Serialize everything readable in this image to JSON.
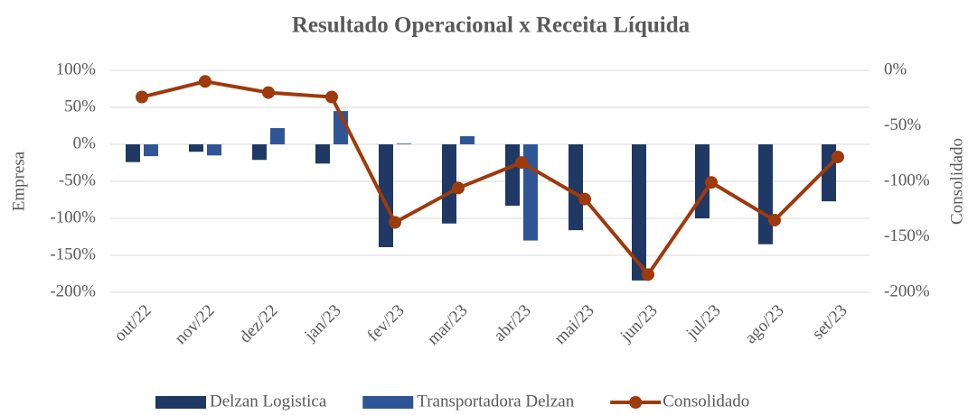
{
  "chart_data": {
    "type": "bar_line",
    "title": "Resultado Operacional x Receita Líquida",
    "ylabel": "Empresa",
    "y2label": "Consolidado",
    "categories": [
      "out/22",
      "nov/22",
      "dez/22",
      "jan/23",
      "fev/23",
      "mar/23",
      "abr/23",
      "mai/23",
      "jun/23",
      "jul/23",
      "ago/23",
      "set/23"
    ],
    "series": [
      {
        "name": "Delzan Logistica",
        "type": "bar",
        "color": "#1f3864",
        "values": [
          -24,
          -10,
          -21,
          -26,
          -139,
          -107,
          -83,
          -116,
          -184,
          -100,
          -135,
          -77
        ]
      },
      {
        "name": "Transportadora Delzan",
        "type": "bar",
        "color": "#2f5597",
        "values": [
          -16,
          -15,
          22,
          45,
          1,
          11,
          -130,
          null,
          null,
          null,
          null,
          null
        ]
      },
      {
        "name": "Consolidado",
        "type": "line",
        "axis": "y2",
        "color": "#9e3a0c",
        "values": [
          -24,
          -10,
          -20,
          -24,
          -137,
          -106,
          -83,
          -116,
          -184,
          -101,
          -135,
          -78
        ]
      }
    ],
    "ylim": [
      -200,
      100
    ],
    "yticks": [
      {
        "value": -200,
        "label": "-200%"
      },
      {
        "value": -150,
        "label": "-150%"
      },
      {
        "value": -100,
        "label": "-100%"
      },
      {
        "value": -50,
        "label": "-50%"
      },
      {
        "value": 0,
        "label": "0%"
      },
      {
        "value": 50,
        "label": "50%"
      },
      {
        "value": 100,
        "label": "100%"
      }
    ],
    "y2lim": [
      -200,
      0
    ],
    "y2ticks": [
      {
        "value": -200,
        "label": "-200%"
      },
      {
        "value": -150,
        "label": "-150%"
      },
      {
        "value": -100,
        "label": "-100%"
      },
      {
        "value": -50,
        "label": "-50%"
      },
      {
        "value": 0,
        "label": "0%"
      }
    ],
    "grid": true,
    "legend": "bottom"
  }
}
